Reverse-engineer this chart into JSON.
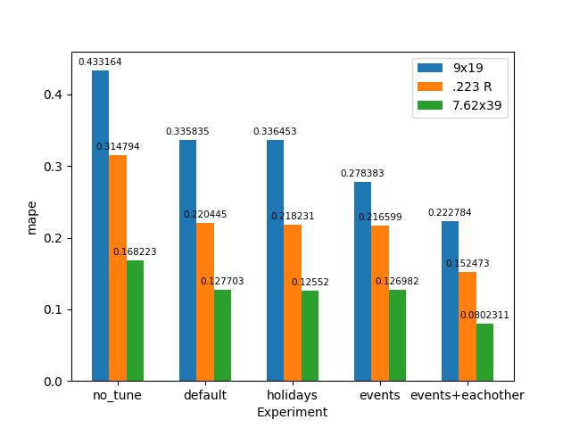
{
  "categories": [
    "no_tune",
    "default",
    "holidays",
    "events",
    "events+eachother"
  ],
  "series": [
    {
      "label": "9x19",
      "color": "#1f77b4",
      "values": [
        0.433164,
        0.335835,
        0.336453,
        0.278383,
        0.222784
      ]
    },
    {
      "label": ".223 R",
      "color": "#ff7f0e",
      "values": [
        0.314794,
        0.220445,
        0.218231,
        0.216599,
        0.152473
      ]
    },
    {
      "label": "7.62x39",
      "color": "#2ca02c",
      "values": [
        0.168223,
        0.127703,
        0.12552,
        0.126982,
        0.0802311
      ]
    }
  ],
  "xlabel": "Experiment",
  "ylabel": "mape",
  "ylim": [
    0,
    0.46
  ],
  "title": "",
  "bar_width": 0.2,
  "figsize": [
    6.4,
    4.8
  ],
  "dpi": 100
}
